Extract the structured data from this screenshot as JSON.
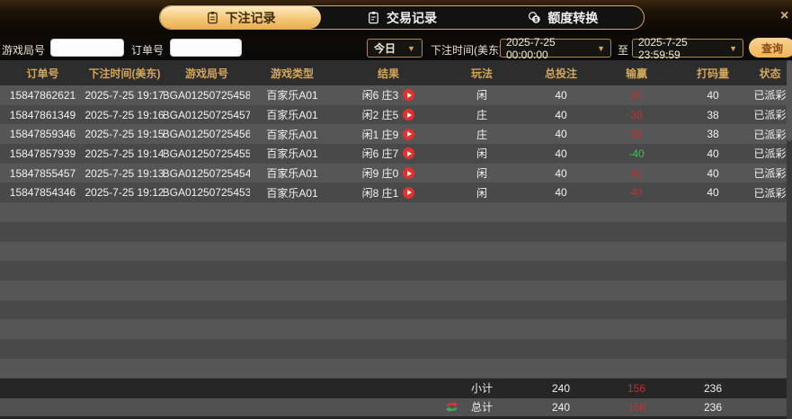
{
  "tabs": [
    {
      "label": "下注记录",
      "icon": "bet-record-icon",
      "active": true
    },
    {
      "label": "交易记录",
      "icon": "transaction-record-icon",
      "active": false
    },
    {
      "label": "额度转换",
      "icon": "quota-transfer-icon",
      "active": false
    }
  ],
  "close_label": "×",
  "filters": {
    "game_round_label": "游戏局号",
    "game_round_value": "",
    "order_label": "订单号",
    "order_value": "",
    "quick_range_value": "今日",
    "caret": "▼",
    "bet_time_label": "下注时间(美东)",
    "date_from": "2025-7-25 00:00:00",
    "to_label": "至",
    "date_to": "2025-7-25 23:59:59",
    "search_label": "查询"
  },
  "table": {
    "headers": [
      "订单号",
      "下注时间(美东)",
      "游戏局号",
      "游戏类型",
      "结果",
      "玩法",
      "总投注",
      "输赢",
      "打码量",
      "状态"
    ],
    "empty_row_count": 9,
    "rows": [
      {
        "order": "15847862621",
        "time": "2025-7-25 19:17",
        "round": "BGA01250725458",
        "type": "百家乐A01",
        "result": "闲6 庄3",
        "play": "闲",
        "bet": "40",
        "winloss": "40",
        "wl_color": "red",
        "turnover": "40",
        "status": "已派彩"
      },
      {
        "order": "15847861349",
        "time": "2025-7-25 19:16",
        "round": "BGA01250725457",
        "type": "百家乐A01",
        "result": "闲2 庄5",
        "play": "庄",
        "bet": "40",
        "winloss": "38",
        "wl_color": "red",
        "turnover": "38",
        "status": "已派彩"
      },
      {
        "order": "15847859346",
        "time": "2025-7-25 19:15",
        "round": "BGA01250725456",
        "type": "百家乐A01",
        "result": "闲1 庄9",
        "play": "庄",
        "bet": "40",
        "winloss": "38",
        "wl_color": "red",
        "turnover": "38",
        "status": "已派彩"
      },
      {
        "order": "15847857939",
        "time": "2025-7-25 19:14",
        "round": "BGA01250725455",
        "type": "百家乐A01",
        "result": "闲6 庄7",
        "play": "闲",
        "bet": "40",
        "winloss": "-40",
        "wl_color": "green",
        "turnover": "40",
        "status": "已派彩"
      },
      {
        "order": "15847855457",
        "time": "2025-7-25 19:13",
        "round": "BGA01250725454",
        "type": "百家乐A01",
        "result": "闲9 庄0",
        "play": "闲",
        "bet": "40",
        "winloss": "40",
        "wl_color": "red",
        "turnover": "40",
        "status": "已派彩"
      },
      {
        "order": "15847854346",
        "time": "2025-7-25 19:12",
        "round": "BGA01250725453",
        "type": "百家乐A01",
        "result": "闲8 庄1",
        "play": "闲",
        "bet": "40",
        "winloss": "40",
        "wl_color": "red",
        "turnover": "40",
        "status": "已派彩"
      }
    ]
  },
  "summary": {
    "subtotal_label": "小计",
    "subtotal": {
      "bet": "240",
      "winloss": "156",
      "turnover": "236"
    },
    "total_label": "总计",
    "total": {
      "bet": "240",
      "winloss": "156",
      "turnover": "236"
    }
  },
  "colors": {
    "accent_gold": "#eeb459",
    "header_text_gold": "#d2a65b",
    "win_red": "#c42f2f",
    "loss_green": "#35c24a",
    "play_icon_red": "#e03131"
  }
}
